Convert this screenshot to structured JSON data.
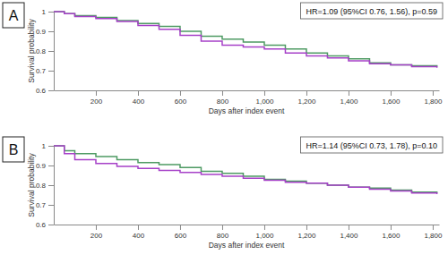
{
  "chart_data": [
    {
      "type": "line",
      "title": "A",
      "annotation": "HR=1.09 (95%CI 0.76, 1.56), p=0.59",
      "x_label": "Days after index event",
      "y_label": "Survival probability",
      "x": [
        0,
        50,
        100,
        200,
        300,
        400,
        500,
        600,
        700,
        800,
        900,
        1000,
        1100,
        1200,
        1300,
        1400,
        1500,
        1600,
        1700,
        1820
      ],
      "series": [
        {
          "color": "#4e9a63",
          "values": [
            1,
            0.99,
            0.98,
            0.97,
            0.955,
            0.94,
            0.925,
            0.9,
            0.875,
            0.86,
            0.845,
            0.83,
            0.81,
            0.79,
            0.775,
            0.76,
            0.74,
            0.73,
            0.725,
            0.72
          ]
        },
        {
          "color": "#a640c8",
          "values": [
            1,
            0.99,
            0.975,
            0.965,
            0.95,
            0.93,
            0.91,
            0.88,
            0.85,
            0.83,
            0.82,
            0.81,
            0.79,
            0.775,
            0.765,
            0.75,
            0.735,
            0.73,
            0.72,
            0.715
          ]
        }
      ],
      "xlim": [
        0,
        1830
      ],
      "ylim": [
        0.6,
        1
      ],
      "xticks": [
        200,
        400,
        600,
        800,
        {
          "value": 1000,
          "label": "1,000"
        },
        {
          "value": 1200,
          "label": "1,200"
        },
        {
          "value": 1400,
          "label": "1,400"
        },
        {
          "value": 1600,
          "label": "1,600"
        },
        {
          "value": 1800,
          "label": "1,800"
        }
      ],
      "yticks": [
        0.6,
        0.7,
        0.8,
        0.9,
        1
      ],
      "grid": false
    },
    {
      "type": "line",
      "title": "B",
      "annotation": "HR=1.14 (95%CI 0.73, 1.78), p=0.10",
      "x_label": "Days after index event",
      "y_label": "Survival probability",
      "x": [
        0,
        50,
        100,
        200,
        300,
        400,
        500,
        600,
        700,
        800,
        900,
        1000,
        1100,
        1200,
        1300,
        1400,
        1500,
        1600,
        1700,
        1820
      ],
      "series": [
        {
          "color": "#4e9a63",
          "values": [
            1,
            0.975,
            0.96,
            0.945,
            0.93,
            0.915,
            0.905,
            0.89,
            0.87,
            0.86,
            0.845,
            0.83,
            0.82,
            0.81,
            0.8,
            0.79,
            0.785,
            0.775,
            0.765,
            0.76
          ]
        },
        {
          "color": "#a640c8",
          "values": [
            1,
            0.96,
            0.93,
            0.91,
            0.895,
            0.885,
            0.875,
            0.865,
            0.855,
            0.845,
            0.835,
            0.825,
            0.815,
            0.81,
            0.8,
            0.79,
            0.78,
            0.77,
            0.76,
            0.755
          ]
        }
      ],
      "xlim": [
        0,
        1830
      ],
      "ylim": [
        0.6,
        1
      ],
      "xticks": [
        200,
        400,
        600,
        800,
        {
          "value": 1000,
          "label": "1,000"
        },
        {
          "value": 1200,
          "label": "1,200"
        },
        {
          "value": 1400,
          "label": "1,400"
        },
        {
          "value": 1600,
          "label": "1,600"
        },
        {
          "value": 1800,
          "label": "1,800"
        }
      ],
      "yticks": [
        0.6,
        0.7,
        0.8,
        0.9,
        1
      ],
      "grid": false
    }
  ]
}
